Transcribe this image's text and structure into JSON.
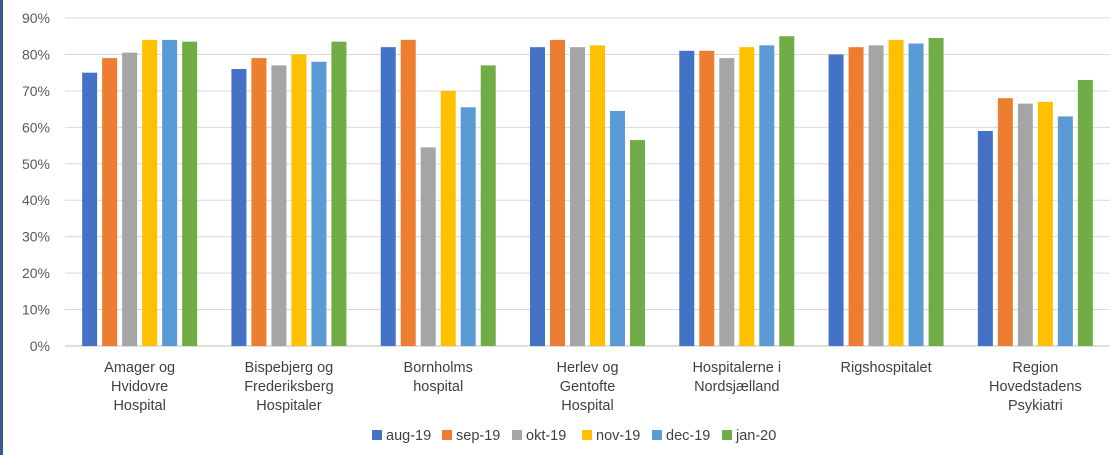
{
  "chart_data": {
    "type": "bar",
    "categories": [
      [
        "Amager og",
        "Hvidovre",
        "Hospital"
      ],
      [
        "Bispebjerg og",
        "Frederiksberg",
        "Hospitaler"
      ],
      [
        "Bornholms",
        "hospital"
      ],
      [
        "Herlev og",
        "Gentofte",
        "Hospital"
      ],
      [
        "Hospitalerne i",
        "Nordsjælland"
      ],
      [
        "Rigshospitalet"
      ],
      [
        "Region",
        "Hovedstadens",
        "Psykiatri"
      ]
    ],
    "series": [
      {
        "name": "aug-19",
        "color": "#4472c4",
        "values": [
          75,
          76,
          82,
          82,
          81,
          80,
          59
        ]
      },
      {
        "name": "sep-19",
        "color": "#ed7d31",
        "values": [
          79,
          79,
          84,
          84,
          81,
          82,
          68
        ]
      },
      {
        "name": "okt-19",
        "color": "#a5a5a5",
        "values": [
          80.5,
          77,
          54.5,
          82,
          79,
          82.5,
          66.5
        ]
      },
      {
        "name": "nov-19",
        "color": "#ffc000",
        "values": [
          84,
          80,
          70,
          82.5,
          82,
          84,
          67
        ]
      },
      {
        "name": "dec-19",
        "color": "#5b9bd5",
        "values": [
          84,
          78,
          65.5,
          64.5,
          82.5,
          83,
          63
        ]
      },
      {
        "name": "jan-20",
        "color": "#70ad47",
        "values": [
          83.5,
          83.5,
          77,
          56.5,
          85,
          84.5,
          73
        ]
      }
    ],
    "yticks": [
      "0%",
      "10%",
      "20%",
      "30%",
      "40%",
      "50%",
      "60%",
      "70%",
      "80%",
      "90%"
    ],
    "ylim": [
      0,
      90
    ],
    "grid": true,
    "legend": "bottom"
  }
}
